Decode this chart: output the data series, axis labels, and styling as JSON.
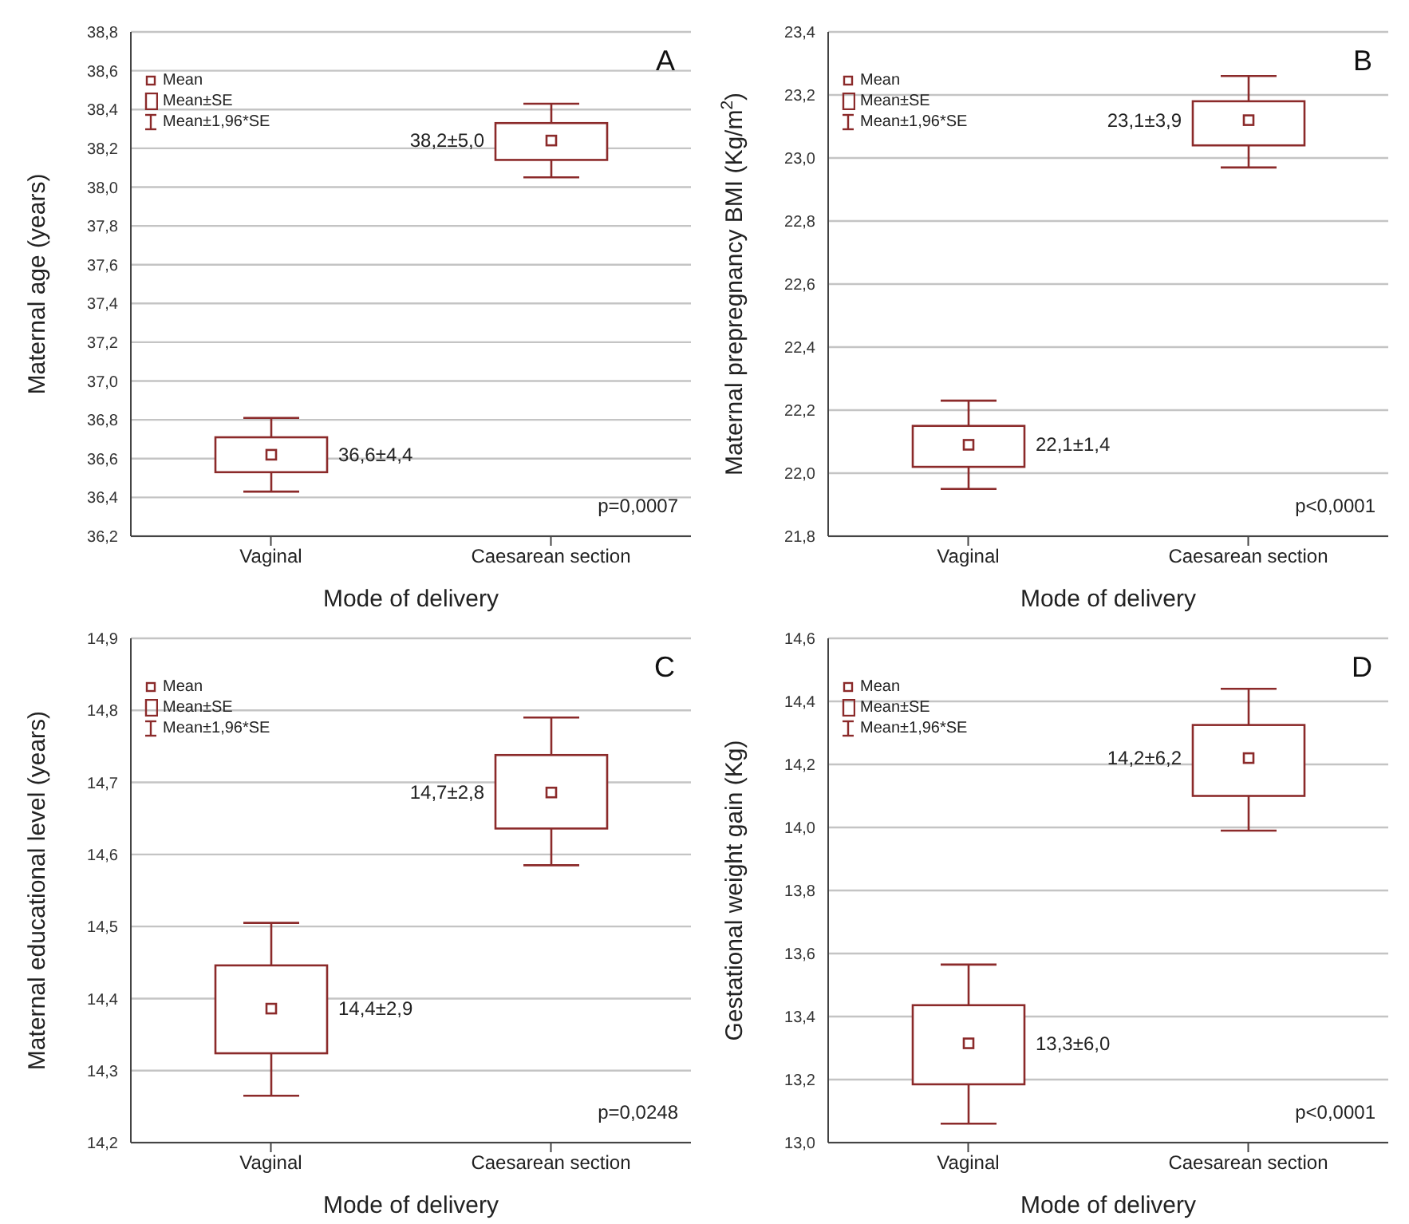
{
  "chart_data": [
    {
      "type": "box",
      "xlabel": "Mode of delivery",
      "ylabel": "Maternal age (years)",
      "categories": [
        "Vaginal",
        "Caesarean section"
      ],
      "color": "#8b2a2a",
      "boxes": [
        {
          "low": 36.43,
          "q1": 36.53,
          "q3": 36.71,
          "high": 36.81,
          "mean": 36.62
        },
        {
          "low": 38.05,
          "q1": 38.14,
          "q3": 38.33,
          "high": 38.43,
          "mean": 38.24
        }
      ],
      "value_labels": [
        "36,6±4,4",
        "38,2±5,0"
      ],
      "ylim": [
        36.2,
        38.8
      ],
      "yticks": [
        {
          "value": 36.2,
          "label": "36,2"
        },
        {
          "value": 36.4,
          "label": "36,4"
        },
        {
          "value": 36.6,
          "label": "36,6"
        },
        {
          "value": 36.8,
          "label": "36,8"
        },
        {
          "value": 37.0,
          "label": "37,0"
        },
        {
          "value": 37.2,
          "label": "37,2"
        },
        {
          "value": 37.4,
          "label": "37,4"
        },
        {
          "value": 37.6,
          "label": "37,6"
        },
        {
          "value": 37.8,
          "label": "37,8"
        },
        {
          "value": 38.0,
          "label": "38,0"
        },
        {
          "value": 38.2,
          "label": "38,2"
        },
        {
          "value": 38.4,
          "label": "38,4"
        },
        {
          "value": 38.6,
          "label": "38,6"
        },
        {
          "value": 38.8,
          "label": "38,8"
        }
      ],
      "grid": "y",
      "annotations": [
        "Mean",
        "Mean±SE",
        "Mean±1,96*SE",
        "A",
        "p=0,0007"
      ]
    },
    {
      "type": "box",
      "xlabel": "Mode of delivery",
      "ylabel": "Maternal prepregnancy BMI (Kg/m$^{2}$)",
      "categories": [
        "Vaginal",
        "Caesarean section"
      ],
      "color": "#8b2a2a",
      "boxes": [
        {
          "low": 21.95,
          "q1": 22.02,
          "q3": 22.15,
          "high": 22.23,
          "mean": 22.09
        },
        {
          "low": 22.97,
          "q1": 23.04,
          "q3": 23.18,
          "high": 23.26,
          "mean": 23.12
        }
      ],
      "value_labels": [
        "22,1±1,4",
        "23,1±3,9"
      ],
      "ylim": [
        21.8,
        23.4
      ],
      "yticks": [
        {
          "value": 21.8,
          "label": "21,8"
        },
        {
          "value": 22.0,
          "label": "22,0"
        },
        {
          "value": 22.2,
          "label": "22,2"
        },
        {
          "value": 22.4,
          "label": "22,4"
        },
        {
          "value": 22.6,
          "label": "22,6"
        },
        {
          "value": 22.8,
          "label": "22,8"
        },
        {
          "value": 23.0,
          "label": "23,0"
        },
        {
          "value": 23.2,
          "label": "23,2"
        },
        {
          "value": 23.4,
          "label": "23,4"
        }
      ],
      "grid": "y",
      "annotations": [
        "Mean",
        "Mean±SE",
        "Mean±1,96*SE",
        "B",
        "p<0,0001"
      ]
    },
    {
      "type": "box",
      "xlabel": "Mode of delivery",
      "ylabel": "Maternal educational level (years)",
      "categories": [
        "Vaginal",
        "Caesarean section"
      ],
      "color": "#8b2a2a",
      "boxes": [
        {
          "low": 14.265,
          "q1": 14.324,
          "q3": 14.446,
          "high": 14.505,
          "mean": 14.386
        },
        {
          "low": 14.585,
          "q1": 14.636,
          "q3": 14.738,
          "high": 14.79,
          "mean": 14.686
        }
      ],
      "value_labels": [
        "14,4±2,9",
        "14,7±2,8"
      ],
      "ylim": [
        14.2,
        14.9
      ],
      "yticks": [
        {
          "value": 14.2,
          "label": "14,2"
        },
        {
          "value": 14.3,
          "label": "14,3"
        },
        {
          "value": 14.4,
          "label": "14,4"
        },
        {
          "value": 14.5,
          "label": "14,5"
        },
        {
          "value": 14.6,
          "label": "14,6"
        },
        {
          "value": 14.7,
          "label": "14,7"
        },
        {
          "value": 14.8,
          "label": "14,8"
        },
        {
          "value": 14.9,
          "label": "14,9"
        }
      ],
      "grid": "y",
      "annotations": [
        "Mean",
        "Mean±SE",
        "Mean±1,96*SE",
        "C",
        "p=0,0248"
      ]
    },
    {
      "type": "box",
      "xlabel": "Mode of delivery",
      "ylabel": "Gestational weight gain (Kg)",
      "categories": [
        "Vaginal",
        "Caesarean section"
      ],
      "color": "#8b2a2a",
      "boxes": [
        {
          "low": 13.06,
          "q1": 13.185,
          "q3": 13.436,
          "high": 13.565,
          "mean": 13.315
        },
        {
          "low": 13.99,
          "q1": 14.1,
          "q3": 14.325,
          "high": 14.44,
          "mean": 14.22
        }
      ],
      "value_labels": [
        "13,3±6,0",
        "14,2±6,2"
      ],
      "ylim": [
        13.0,
        14.6
      ],
      "yticks": [
        {
          "value": 13.0,
          "label": "13,0"
        },
        {
          "value": 13.2,
          "label": "13,2"
        },
        {
          "value": 13.4,
          "label": "13,4"
        },
        {
          "value": 13.6,
          "label": "13,6"
        },
        {
          "value": 13.8,
          "label": "13,8"
        },
        {
          "value": 14.0,
          "label": "14,0"
        },
        {
          "value": 14.2,
          "label": "14,2"
        },
        {
          "value": 14.4,
          "label": "14,4"
        },
        {
          "value": 14.6,
          "label": "14,6"
        }
      ],
      "grid": "y",
      "annotations": [
        "Mean",
        "Mean±SE",
        "Mean±1,96*SE",
        "D",
        "p<0,0001"
      ]
    }
  ]
}
